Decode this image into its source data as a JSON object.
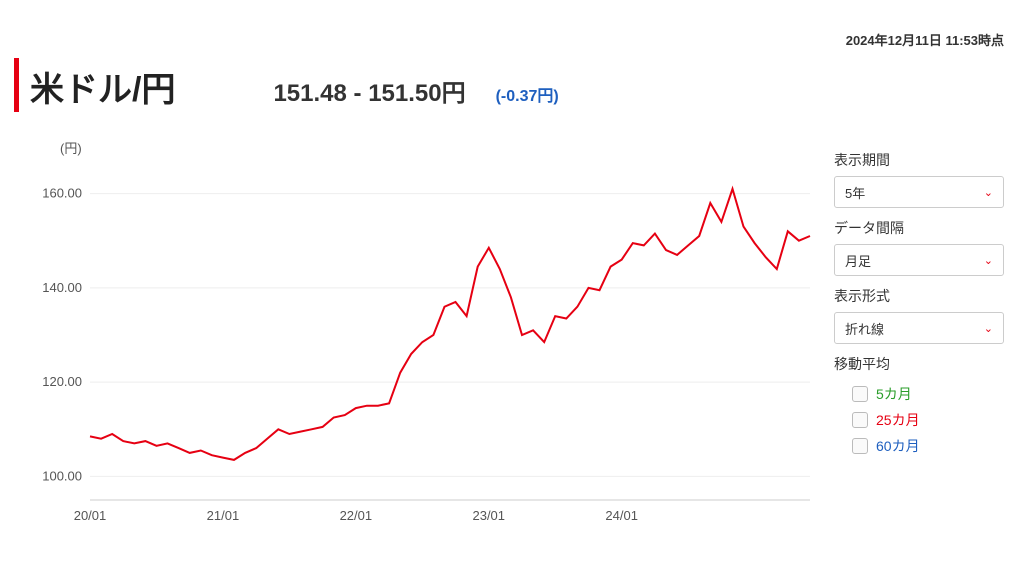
{
  "timestamp": "2024年12月11日 11:53時点",
  "title": "米ドル/円",
  "price_range": "151.48 - 151.50円",
  "change": "(-0.37円)",
  "chart": {
    "type": "line",
    "y_unit": "(円)",
    "ylim": [
      95,
      165
    ],
    "yticks": [
      100,
      120,
      140,
      160
    ],
    "xtick_labels": [
      "20/01",
      "21/01",
      "22/01",
      "23/01",
      "24/01"
    ],
    "xtick_indices": [
      0,
      12,
      24,
      36,
      48
    ],
    "line_color": "#e60012",
    "line_width": 2,
    "background_color": "#ffffff",
    "grid_color": "#eeeeee",
    "axis_color": "#cccccc",
    "tick_font_size": 13,
    "tick_color": "#555555",
    "series": [
      108.5,
      108,
      109,
      107.5,
      107,
      107.5,
      106.5,
      107,
      106,
      105,
      105.5,
      104.5,
      104,
      103.5,
      105,
      106,
      108,
      110,
      109,
      109.5,
      110,
      110.5,
      112.5,
      113,
      114.5,
      115,
      115,
      115.5,
      122,
      126,
      128.5,
      130,
      136,
      137,
      134,
      144.5,
      148.5,
      144,
      138,
      130,
      131,
      128.5,
      134,
      133.5,
      136,
      140,
      139.5,
      144.5,
      146,
      149.5,
      149,
      151.5,
      148,
      147,
      149,
      151,
      158,
      154,
      161,
      153,
      149.5,
      146.5,
      144,
      152,
      150,
      151
    ]
  },
  "controls": {
    "period_label": "表示期間",
    "period_value": "5年",
    "interval_label": "データ間隔",
    "interval_value": "月足",
    "format_label": "表示形式",
    "format_value": "折れ線",
    "ma_label": "移動平均",
    "ma5_label": "5カ月",
    "ma25_label": "25カ月",
    "ma60_label": "60カ月"
  }
}
